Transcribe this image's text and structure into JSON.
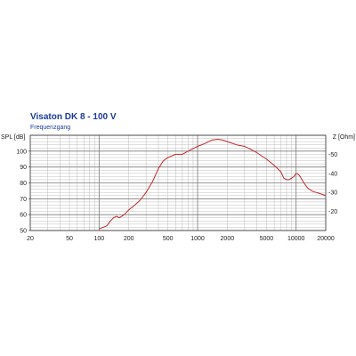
{
  "chart_data": {
    "type": "line",
    "title": "Visaton  DK 8 - 100 V",
    "subtitle": "Frequenzgang",
    "xlabel": "",
    "ylabel_left": "SPL [dB]",
    "ylabel_right": "Z [Ohm]",
    "x_scale": "log",
    "xlim": [
      20,
      20000
    ],
    "ylim_left": [
      50,
      110
    ],
    "ylim_right": [
      10,
      60
    ],
    "grid": true,
    "x_ticks": [
      "20",
      "50",
      "100",
      "200",
      "500",
      "1000",
      "2000",
      "5000",
      "10000",
      "20000"
    ],
    "y_ticks_left": [
      "50",
      "60",
      "70",
      "80",
      "90",
      "100"
    ],
    "y_ticks_right": [
      "20",
      "30",
      "40",
      "50"
    ],
    "series": [
      {
        "color": "#c0282d",
        "axis": "left",
        "x": [
          100,
          110,
          120,
          130,
          140,
          150,
          160,
          170,
          180,
          200,
          230,
          260,
          300,
          350,
          400,
          450,
          500,
          600,
          700,
          800,
          1000,
          1200,
          1400,
          1600,
          1800,
          2000,
          2500,
          3000,
          3500,
          4000,
          5000,
          6000,
          7000,
          7500,
          8000,
          8500,
          9000,
          9500,
          10000,
          10500,
          11000,
          12000,
          13000,
          14000,
          15000,
          17000,
          20000
        ],
        "y": [
          51,
          52,
          53,
          56,
          58,
          59,
          58,
          59,
          60,
          63,
          66,
          69,
          74,
          81,
          89,
          94,
          96,
          98,
          98,
          100,
          103,
          105,
          107,
          107.5,
          107,
          106,
          104,
          103,
          101,
          99,
          95,
          91,
          87,
          83,
          82,
          82,
          83,
          84,
          86,
          85.5,
          84,
          80,
          77,
          75.5,
          74.5,
          73.5,
          72
        ]
      }
    ]
  }
}
